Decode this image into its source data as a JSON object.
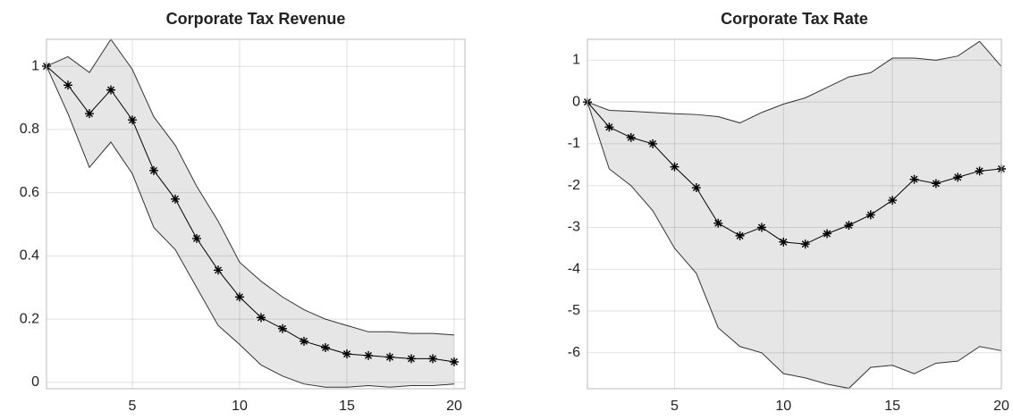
{
  "chart_data": [
    {
      "type": "line",
      "title": "Corporate Tax Revenue",
      "x": [
        1,
        2,
        3,
        4,
        5,
        6,
        7,
        8,
        9,
        10,
        11,
        12,
        13,
        14,
        15,
        16,
        17,
        18,
        19,
        20
      ],
      "series": [
        {
          "color": "#000000",
          "values": [
            1,
            0.94,
            0.85,
            0.925,
            0.83,
            0.67,
            0.58,
            0.455,
            0.355,
            0.27,
            0.205,
            0.17,
            0.13,
            0.11,
            0.09,
            0.085,
            0.08,
            0.075,
            0.075,
            0.065
          ]
        }
      ],
      "band": {
        "color": "#e6e6e6",
        "upper": [
          1,
          1.03,
          0.98,
          1.085,
          0.99,
          0.84,
          0.75,
          0.62,
          0.51,
          0.38,
          0.32,
          0.27,
          0.23,
          0.2,
          0.18,
          0.16,
          0.16,
          0.155,
          0.155,
          0.15
        ],
        "lower": [
          1,
          0.85,
          0.68,
          0.76,
          0.66,
          0.49,
          0.42,
          0.3,
          0.18,
          0.12,
          0.055,
          0.02,
          -0.005,
          -0.015,
          -0.015,
          -0.01,
          -0.015,
          -0.01,
          -0.01,
          -0.005
        ]
      },
      "xlim": [
        1,
        20.5
      ],
      "xticks": [
        5,
        10,
        15,
        20
      ],
      "ylim": [
        -0.02,
        1.085
      ],
      "yticks": [
        0,
        0.2,
        0.4,
        0.6,
        0.8,
        1
      ],
      "grid": true
    },
    {
      "type": "line",
      "title": "Corporate Tax Rate",
      "x": [
        1,
        2,
        3,
        4,
        5,
        6,
        7,
        8,
        9,
        10,
        11,
        12,
        13,
        14,
        15,
        16,
        17,
        18,
        19,
        20
      ],
      "series": [
        {
          "color": "#000000",
          "values": [
            0,
            -0.6,
            -0.85,
            -1.0,
            -1.55,
            -2.05,
            -2.9,
            -3.2,
            -3.0,
            -3.35,
            -3.4,
            -3.15,
            -2.95,
            -2.7,
            -2.35,
            -1.85,
            -1.95,
            -1.8,
            -1.65,
            -1.6
          ]
        }
      ],
      "band": {
        "color": "#e6e6e6",
        "upper": [
          0,
          -0.2,
          -0.22,
          -0.25,
          -0.28,
          -0.3,
          -0.35,
          -0.5,
          -0.25,
          -0.05,
          0.1,
          0.35,
          0.6,
          0.7,
          1.05,
          1.05,
          1.0,
          1.1,
          1.45,
          0.85
        ],
        "lower": [
          0,
          -1.6,
          -2.0,
          -2.6,
          -3.5,
          -4.1,
          -5.4,
          -5.85,
          -6.0,
          -6.5,
          -6.6,
          -6.75,
          -6.85,
          -6.35,
          -6.3,
          -6.5,
          -6.25,
          -6.2,
          -5.85,
          -5.95
        ]
      },
      "xlim": [
        1,
        20
      ],
      "xticks": [
        5,
        10,
        15,
        20
      ],
      "ylim": [
        -6.86,
        1.5
      ],
      "yticks": [
        1,
        0,
        -1,
        -2,
        -3,
        -4,
        -5,
        -6
      ],
      "grid": true
    }
  ]
}
